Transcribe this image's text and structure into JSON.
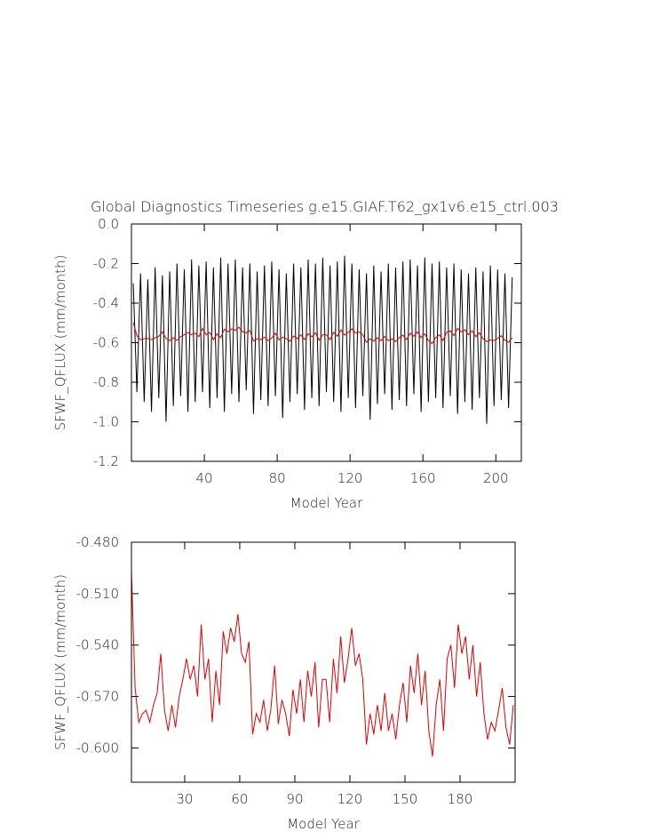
{
  "chart_data": [
    {
      "type": "line",
      "title": "Global Diagnostics Timeseries g.e15.GIAF.T62_gx1v6.e15_ctrl.003",
      "x_label": "Model Year",
      "y_label": "SFWF_QFLUX (mm/month)",
      "xlim": [
        0,
        214
      ],
      "ylim": [
        -1.2,
        0
      ],
      "xticks": [
        40,
        80,
        120,
        160,
        200
      ],
      "yticks": [
        -1.2,
        {
          "value": -1.0,
          "label": "-1.0"
        },
        -0.8,
        -0.6,
        -0.4,
        -0.2,
        {
          "value": 0,
          "label": "0.0"
        }
      ],
      "x": [
        1,
        3,
        5,
        7,
        9,
        11,
        13,
        15,
        17,
        19,
        21,
        23,
        25,
        27,
        29,
        31,
        33,
        35,
        37,
        39,
        41,
        43,
        45,
        47,
        49,
        51,
        53,
        55,
        57,
        59,
        61,
        63,
        65,
        67,
        69,
        71,
        73,
        75,
        77,
        79,
        81,
        83,
        85,
        87,
        89,
        91,
        93,
        95,
        97,
        99,
        101,
        103,
        105,
        107,
        109,
        111,
        113,
        115,
        117,
        119,
        121,
        123,
        125,
        127,
        129,
        131,
        133,
        135,
        137,
        139,
        141,
        143,
        145,
        147,
        149,
        151,
        153,
        155,
        157,
        159,
        161,
        163,
        165,
        167,
        169,
        171,
        173,
        175,
        177,
        179,
        181,
        183,
        185,
        187,
        189,
        191,
        193,
        195,
        197,
        199,
        201,
        203,
        205,
        207,
        209
      ],
      "series": [
        {
          "color": "#000000",
          "values": [
            -0.3,
            -0.85,
            -0.25,
            -0.9,
            -0.28,
            -0.95,
            -0.22,
            -0.88,
            -0.26,
            -1.0,
            -0.24,
            -0.92,
            -0.2,
            -0.87,
            -0.23,
            -0.95,
            -0.18,
            -0.9,
            -0.21,
            -0.85,
            -0.19,
            -0.93,
            -0.22,
            -0.88,
            -0.17,
            -0.95,
            -0.2,
            -0.86,
            -0.18,
            -0.9,
            -0.22,
            -0.84,
            -0.2,
            -0.96,
            -0.24,
            -0.89,
            -0.21,
            -0.92,
            -0.19,
            -0.87,
            -0.23,
            -0.98,
            -0.25,
            -0.9,
            -0.2,
            -0.86,
            -0.22,
            -0.94,
            -0.18,
            -0.88,
            -0.2,
            -0.92,
            -0.17,
            -0.85,
            -0.21,
            -0.9,
            -0.19,
            -0.95,
            -0.16,
            -0.88,
            -0.2,
            -0.93,
            -0.23,
            -0.87,
            -0.25,
            -0.99,
            -0.21,
            -0.91,
            -0.24,
            -0.86,
            -0.2,
            -0.94,
            -0.22,
            -0.89,
            -0.19,
            -0.92,
            -0.18,
            -0.86,
            -0.21,
            -0.95,
            -0.17,
            -0.9,
            -0.2,
            -0.88,
            -0.19,
            -0.93,
            -0.22,
            -0.87,
            -0.2,
            -0.96,
            -0.23,
            -0.9,
            -0.25,
            -0.94,
            -0.22,
            -0.88,
            -0.24,
            -1.01,
            -0.21,
            -0.92,
            -0.23,
            -0.89,
            -0.25,
            -0.93,
            -0.27
          ]
        },
        {
          "color": "#e00000",
          "values": [
            -0.497,
            -0.565,
            -0.585,
            -0.58,
            -0.578,
            -0.585,
            -0.575,
            -0.568,
            -0.545,
            -0.578,
            -0.59,
            -0.575,
            -0.588,
            -0.57,
            -0.56,
            -0.548,
            -0.56,
            -0.552,
            -0.57,
            -0.528,
            -0.56,
            -0.548,
            -0.585,
            -0.555,
            -0.575,
            -0.532,
            -0.545,
            -0.53,
            -0.538,
            -0.522,
            -0.545,
            -0.55,
            -0.538,
            -0.592,
            -0.58,
            -0.585,
            -0.572,
            -0.59,
            -0.577,
            -0.552,
            -0.586,
            -0.572,
            -0.58,
            -0.593,
            -0.566,
            -0.58,
            -0.56,
            -0.585,
            -0.555,
            -0.57,
            -0.55,
            -0.588,
            -0.56,
            -0.56,
            -0.585,
            -0.548,
            -0.568,
            -0.535,
            -0.562,
            -0.548,
            -0.53,
            -0.552,
            -0.545,
            -0.56,
            -0.598,
            -0.58,
            -0.592,
            -0.575,
            -0.59,
            -0.568,
            -0.59,
            -0.58,
            -0.595,
            -0.575,
            -0.562,
            -0.585,
            -0.552,
            -0.568,
            -0.545,
            -0.575,
            -0.555,
            -0.59,
            -0.605,
            -0.575,
            -0.56,
            -0.59,
            -0.548,
            -0.54,
            -0.565,
            -0.528,
            -0.545,
            -0.535,
            -0.56,
            -0.54,
            -0.57,
            -0.55,
            -0.58,
            -0.595,
            -0.585,
            -0.59,
            -0.578,
            -0.565,
            -0.588,
            -0.598,
            -0.575
          ]
        }
      ]
    },
    {
      "type": "line",
      "x_label": "Model Year",
      "y_label": "SFWF_QFLUX (mm/month)",
      "xlim": [
        1,
        210
      ],
      "ylim": [
        -0.62,
        -0.48
      ],
      "xticks": [
        30,
        60,
        90,
        120,
        150,
        180
      ],
      "yticks": [
        {
          "value": -0.6,
          "label": "-0.600"
        },
        {
          "value": -0.57,
          "label": "-0.570"
        },
        {
          "value": -0.54,
          "label": "-0.540"
        },
        {
          "value": -0.51,
          "label": "-0.510"
        },
        {
          "value": -0.48,
          "label": "-0.480"
        }
      ],
      "x": [
        1,
        3,
        5,
        7,
        9,
        11,
        13,
        15,
        17,
        19,
        21,
        23,
        25,
        27,
        29,
        31,
        33,
        35,
        37,
        39,
        41,
        43,
        45,
        47,
        49,
        51,
        53,
        55,
        57,
        59,
        61,
        63,
        65,
        67,
        69,
        71,
        73,
        75,
        77,
        79,
        81,
        83,
        85,
        87,
        89,
        91,
        93,
        95,
        97,
        99,
        101,
        103,
        105,
        107,
        109,
        111,
        113,
        115,
        117,
        119,
        121,
        123,
        125,
        127,
        129,
        131,
        133,
        135,
        137,
        139,
        141,
        143,
        145,
        147,
        149,
        151,
        153,
        155,
        157,
        159,
        161,
        163,
        165,
        167,
        169,
        171,
        173,
        175,
        177,
        179,
        181,
        183,
        185,
        187,
        189,
        191,
        193,
        195,
        197,
        199,
        201,
        203,
        205,
        207,
        209
      ],
      "series": [
        {
          "color": "#e00000",
          "values": [
            -0.497,
            -0.565,
            -0.585,
            -0.58,
            -0.578,
            -0.585,
            -0.575,
            -0.568,
            -0.545,
            -0.578,
            -0.59,
            -0.575,
            -0.588,
            -0.57,
            -0.56,
            -0.548,
            -0.56,
            -0.552,
            -0.57,
            -0.528,
            -0.56,
            -0.548,
            -0.585,
            -0.555,
            -0.575,
            -0.532,
            -0.545,
            -0.53,
            -0.538,
            -0.522,
            -0.545,
            -0.55,
            -0.538,
            -0.592,
            -0.58,
            -0.585,
            -0.572,
            -0.59,
            -0.577,
            -0.552,
            -0.586,
            -0.572,
            -0.58,
            -0.593,
            -0.566,
            -0.58,
            -0.56,
            -0.585,
            -0.555,
            -0.57,
            -0.55,
            -0.588,
            -0.56,
            -0.56,
            -0.585,
            -0.548,
            -0.568,
            -0.535,
            -0.562,
            -0.548,
            -0.53,
            -0.552,
            -0.545,
            -0.56,
            -0.598,
            -0.58,
            -0.592,
            -0.575,
            -0.59,
            -0.568,
            -0.59,
            -0.58,
            -0.595,
            -0.575,
            -0.562,
            -0.585,
            -0.552,
            -0.568,
            -0.545,
            -0.575,
            -0.555,
            -0.59,
            -0.605,
            -0.575,
            -0.56,
            -0.59,
            -0.548,
            -0.54,
            -0.565,
            -0.528,
            -0.545,
            -0.535,
            -0.56,
            -0.54,
            -0.57,
            -0.55,
            -0.58,
            -0.595,
            -0.585,
            -0.59,
            -0.578,
            -0.565,
            -0.588,
            -0.598,
            -0.575
          ]
        }
      ]
    }
  ]
}
